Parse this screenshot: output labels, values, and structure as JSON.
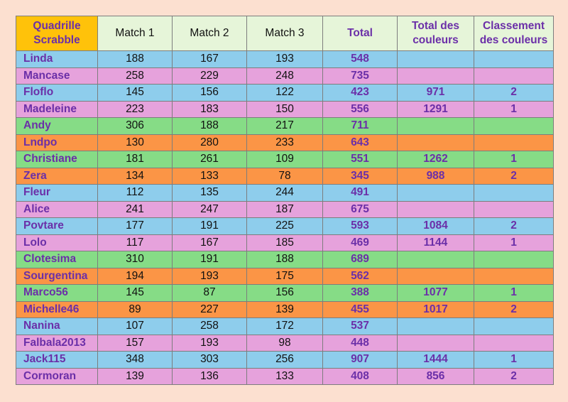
{
  "header": {
    "corner_line1": "Quadrille",
    "corner_line2": "Scrabble",
    "match1": "Match 1",
    "match2": "Match 2",
    "match3": "Match 3",
    "total": "Total",
    "color_total_line1": "Total des",
    "color_total_line2": "couleurs",
    "color_rank_line1": "Classement",
    "color_rank_line2": "des couleurs"
  },
  "colors": {
    "blue": "#8ecdec",
    "pink": "#e6a2dc",
    "green": "#86dc86",
    "orange": "#fb9546",
    "corner": "#ffc20a",
    "header": "#e6f5d9",
    "text_purple": "#6b2fa8",
    "page_background": "#fce0d0"
  },
  "rows": [
    {
      "name": "Linda",
      "color": "blue",
      "m1": "188",
      "m2": "167",
      "m3": "193",
      "total": "548",
      "color_total": "",
      "color_rank": ""
    },
    {
      "name": "Mancase",
      "color": "pink",
      "m1": "258",
      "m2": "229",
      "m3": "248",
      "total": "735",
      "color_total": "",
      "color_rank": ""
    },
    {
      "name": "Floflo",
      "color": "blue",
      "m1": "145",
      "m2": "156",
      "m3": "122",
      "total": "423",
      "color_total": "971",
      "color_rank": "2"
    },
    {
      "name": "Madeleine",
      "color": "pink",
      "m1": "223",
      "m2": "183",
      "m3": "150",
      "total": "556",
      "color_total": "1291",
      "color_rank": "1"
    },
    {
      "name": "Andy",
      "color": "green",
      "m1": "306",
      "m2": "188",
      "m3": "217",
      "total": "711",
      "color_total": "",
      "color_rank": ""
    },
    {
      "name": "Lndpo",
      "color": "orange",
      "m1": "130",
      "m2": "280",
      "m3": "233",
      "total": "643",
      "color_total": "",
      "color_rank": ""
    },
    {
      "name": "Christiane",
      "color": "green",
      "m1": "181",
      "m2": "261",
      "m3": "109",
      "total": "551",
      "color_total": "1262",
      "color_rank": "1"
    },
    {
      "name": "Zera",
      "color": "orange",
      "m1": "134",
      "m2": "133",
      "m3": "78",
      "total": "345",
      "color_total": "988",
      "color_rank": "2"
    },
    {
      "name": "Fleur",
      "color": "blue",
      "m1": "112",
      "m2": "135",
      "m3": "244",
      "total": "491",
      "color_total": "",
      "color_rank": ""
    },
    {
      "name": "Alice",
      "color": "pink",
      "m1": "241",
      "m2": "247",
      "m3": "187",
      "total": "675",
      "color_total": "",
      "color_rank": ""
    },
    {
      "name": "Povtare",
      "color": "blue",
      "m1": "177",
      "m2": "191",
      "m3": "225",
      "total": "593",
      "color_total": "1084",
      "color_rank": "2"
    },
    {
      "name": "Lolo",
      "color": "pink",
      "m1": "117",
      "m2": "167",
      "m3": "185",
      "total": "469",
      "color_total": "1144",
      "color_rank": "1"
    },
    {
      "name": "Clotesima",
      "color": "green",
      "m1": "310",
      "m2": "191",
      "m3": "188",
      "total": "689",
      "color_total": "",
      "color_rank": ""
    },
    {
      "name": "Sourgentina",
      "color": "orange",
      "m1": "194",
      "m2": "193",
      "m3": "175",
      "total": "562",
      "color_total": "",
      "color_rank": ""
    },
    {
      "name": "Marco56",
      "color": "green",
      "m1": "145",
      "m2": "87",
      "m3": "156",
      "total": "388",
      "color_total": "1077",
      "color_rank": "1"
    },
    {
      "name": "Michelle46",
      "color": "orange",
      "m1": "89",
      "m2": "227",
      "m3": "139",
      "total": "455",
      "color_total": "1017",
      "color_rank": "2"
    },
    {
      "name": "Nanina",
      "color": "blue",
      "m1": "107",
      "m2": "258",
      "m3": "172",
      "total": "537",
      "color_total": "",
      "color_rank": ""
    },
    {
      "name": "Falbala2013",
      "color": "pink",
      "m1": "157",
      "m2": "193",
      "m3": "98",
      "total": "448",
      "color_total": "",
      "color_rank": ""
    },
    {
      "name": "Jack115",
      "color": "blue",
      "m1": "348",
      "m2": "303",
      "m3": "256",
      "total": "907",
      "color_total": "1444",
      "color_rank": "1"
    },
    {
      "name": "Cormoran",
      "color": "pink",
      "m1": "139",
      "m2": "136",
      "m3": "133",
      "total": "408",
      "color_total": "856",
      "color_rank": "2"
    }
  ]
}
